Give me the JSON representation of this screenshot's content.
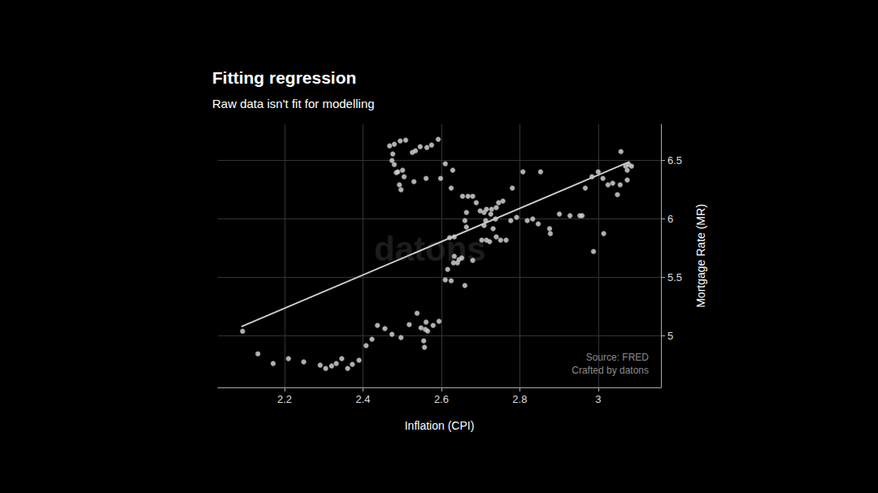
{
  "chart_data": {
    "type": "scatter",
    "title": "Fitting regression",
    "subtitle": "Raw data isn't fit for modelling",
    "x_label": "Inflation (CPI)",
    "y_label": "Mortgage Rate (MR)",
    "annotations": [
      "Source: FRED",
      "Crafted by datons"
    ],
    "watermark": "datons",
    "color": "#dddddd",
    "x": [
      2.093,
      2.132,
      2.171,
      2.21,
      2.249,
      2.291,
      2.305,
      2.32,
      2.332,
      2.346,
      2.361,
      2.373,
      2.39,
      2.408,
      2.423,
      2.437,
      2.456,
      2.474,
      2.497,
      2.518,
      2.538,
      2.548,
      2.555,
      2.557,
      2.559,
      2.565,
      2.561,
      2.579,
      2.594,
      2.468,
      2.48,
      2.476,
      2.474,
      2.48,
      2.485,
      2.489,
      2.493,
      2.497,
      2.501,
      2.505,
      2.495,
      2.509,
      2.526,
      2.534,
      2.546,
      2.563,
      2.575,
      2.592,
      2.53,
      2.561,
      2.598,
      2.61,
      2.629,
      2.625,
      2.654,
      2.668,
      2.68,
      2.689,
      2.699,
      2.664,
      2.664,
      2.66,
      2.709,
      2.715,
      2.726,
      2.728,
      2.74,
      2.746,
      2.757,
      2.738,
      2.713,
      2.709,
      2.732,
      2.74,
      2.715,
      2.703,
      2.723,
      2.751,
      2.765,
      2.777,
      2.792,
      2.781,
      2.808,
      2.853,
      2.819,
      2.833,
      2.847,
      2.876,
      2.878,
      2.901,
      2.928,
      2.953,
      2.959,
      2.967,
      2.984,
      3.0,
      2.988,
      3.014,
      3.012,
      3.025,
      3.037,
      3.049,
      3.056,
      3.058,
      3.07,
      3.078,
      3.074,
      3.074,
      3.085,
      2.621,
      2.633,
      2.631,
      2.641,
      2.633,
      2.645,
      2.652,
      2.616,
      2.61,
      2.625,
      2.66,
      2.68
    ],
    "values": [
      5.04,
      4.847,
      4.764,
      4.806,
      4.778,
      4.75,
      4.722,
      4.743,
      4.764,
      4.806,
      4.722,
      4.757,
      4.792,
      4.917,
      4.972,
      5.09,
      5.063,
      5.014,
      4.986,
      5.097,
      5.194,
      5.069,
      4.958,
      4.903,
      5.056,
      5.042,
      5.118,
      5.09,
      5.125,
      6.625,
      6.639,
      6.556,
      6.5,
      6.465,
      6.396,
      6.403,
      6.292,
      6.25,
      6.417,
      6.361,
      6.667,
      6.674,
      6.569,
      6.583,
      6.618,
      6.611,
      6.632,
      6.681,
      6.319,
      6.347,
      6.347,
      6.472,
      6.417,
      6.264,
      6.194,
      6.194,
      6.194,
      6.139,
      6.069,
      6.056,
      5.931,
      5.986,
      6.056,
      6.083,
      6.042,
      6.083,
      6.097,
      6.139,
      6.153,
      6.0,
      5.986,
      5.944,
      5.917,
      5.847,
      5.819,
      5.819,
      5.806,
      5.819,
      5.819,
      5.986,
      6.014,
      6.264,
      6.403,
      6.403,
      5.986,
      6.0,
      5.958,
      5.917,
      5.875,
      6.042,
      6.028,
      6.028,
      6.028,
      6.264,
      6.361,
      6.403,
      5.722,
      5.875,
      6.347,
      6.292,
      6.306,
      6.208,
      6.292,
      6.576,
      6.451,
      6.465,
      6.417,
      6.333,
      6.451,
      5.84,
      5.847,
      5.625,
      5.625,
      5.681,
      5.653,
      5.667,
      5.569,
      5.479,
      5.472,
      5.431,
      5.646
    ],
    "fit": {
      "type": "line",
      "color": "#cccccc",
      "x": [
        2.09,
        3.08
      ],
      "values": [
        5.08,
        6.49
      ]
    },
    "xlim": [
      2.03,
      3.16
    ],
    "xticks": [
      2.2,
      2.4,
      2.6,
      2.8,
      3
    ],
    "ylim": [
      4.56,
      6.81
    ],
    "yticks": [
      5,
      5.5,
      6,
      6.5
    ],
    "grid": true
  }
}
